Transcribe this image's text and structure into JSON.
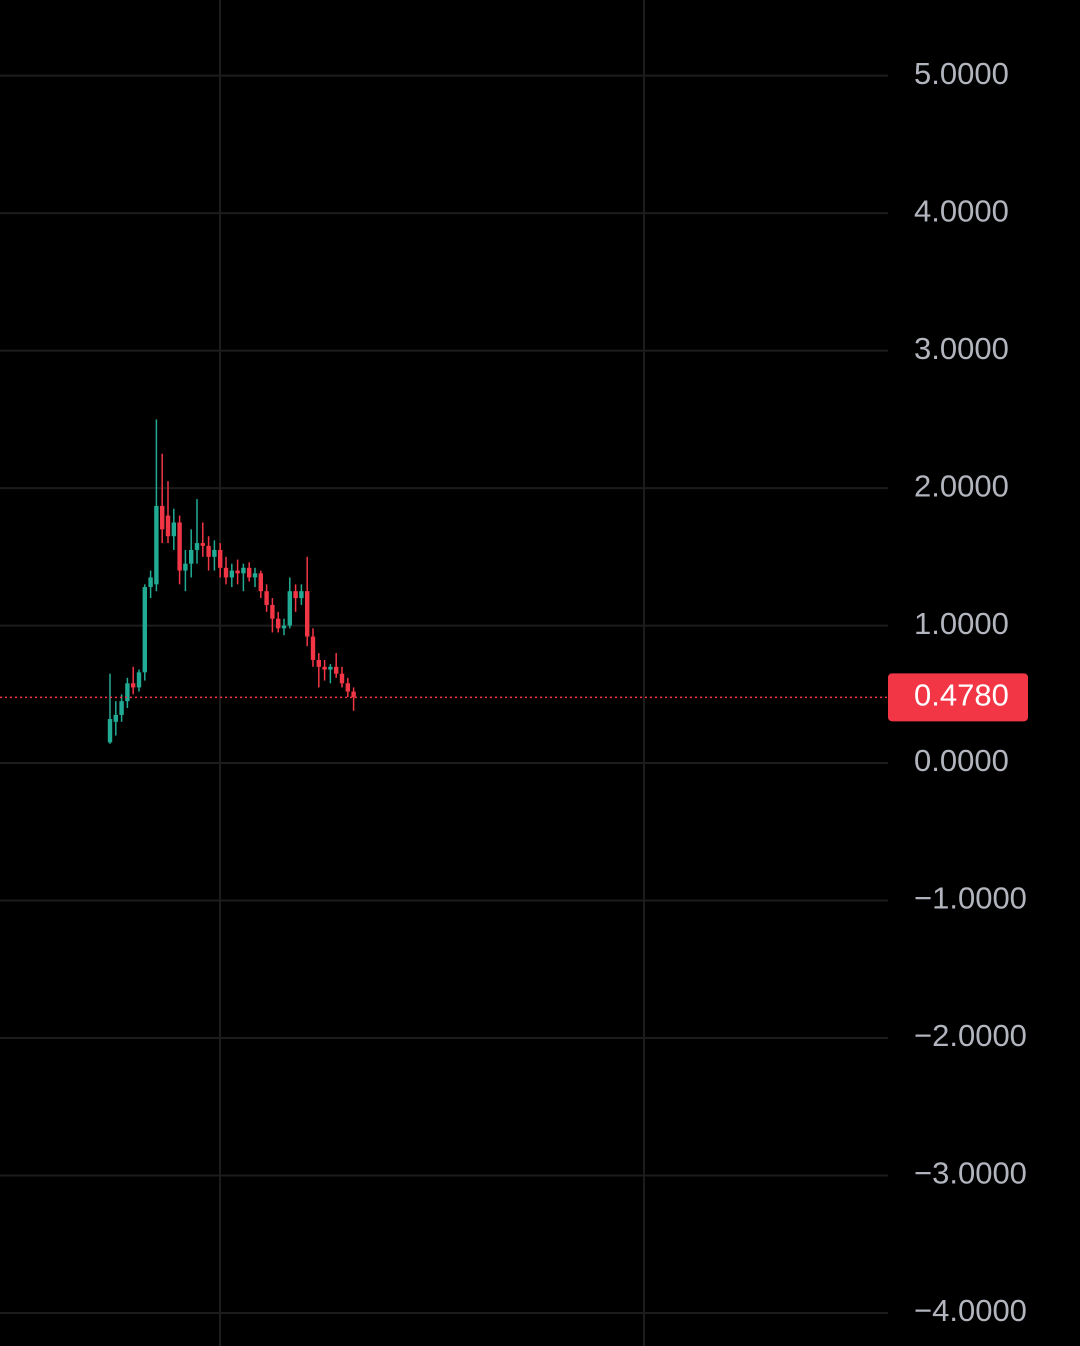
{
  "chart_data": {
    "type": "candlestick",
    "categories": [
      null,
      null,
      null,
      null,
      null,
      null,
      null,
      null,
      null,
      null,
      null,
      null,
      null,
      null,
      null,
      null,
      null,
      null,
      null,
      null,
      null,
      null,
      null,
      null,
      null,
      null,
      null,
      null,
      null,
      null,
      null,
      null,
      null,
      null,
      null,
      null,
      null,
      null,
      null,
      null,
      null,
      null,
      null
    ],
    "open": [
      0.15,
      0.3,
      0.35,
      0.45,
      0.58,
      0.55,
      0.66,
      1.28,
      1.3,
      1.87,
      1.8,
      1.65,
      1.75,
      1.4,
      1.45,
      1.55,
      1.6,
      1.58,
      1.5,
      1.55,
      1.42,
      1.35,
      1.4,
      1.38,
      1.42,
      1.35,
      1.38,
      1.25,
      1.15,
      1.05,
      0.98,
      1.0,
      1.25,
      1.2,
      1.25,
      0.92,
      0.75,
      0.7,
      0.68,
      0.7,
      0.65,
      0.58,
      0.52
    ],
    "high": [
      0.65,
      0.45,
      0.5,
      0.62,
      0.7,
      0.68,
      1.3,
      1.4,
      2.5,
      2.25,
      2.05,
      1.85,
      1.8,
      1.55,
      1.7,
      1.92,
      1.75,
      1.65,
      1.62,
      1.6,
      1.5,
      1.45,
      1.48,
      1.45,
      1.46,
      1.42,
      1.4,
      1.3,
      1.2,
      1.1,
      1.05,
      1.35,
      1.3,
      1.3,
      1.5,
      0.98,
      0.8,
      0.75,
      0.72,
      0.8,
      0.7,
      0.62,
      0.55
    ],
    "low": [
      0.14,
      0.2,
      0.3,
      0.4,
      0.5,
      0.52,
      0.6,
      1.2,
      1.25,
      1.6,
      1.6,
      1.55,
      1.3,
      1.25,
      1.35,
      1.45,
      1.5,
      1.4,
      1.4,
      1.35,
      1.3,
      1.28,
      1.3,
      1.25,
      1.32,
      1.28,
      1.2,
      1.1,
      0.95,
      0.95,
      0.93,
      0.98,
      1.1,
      1.15,
      0.85,
      0.7,
      0.55,
      0.6,
      0.58,
      0.62,
      0.55,
      0.48,
      0.38
    ],
    "close": [
      0.32,
      0.35,
      0.45,
      0.58,
      0.55,
      0.66,
      1.28,
      1.35,
      1.87,
      1.7,
      1.65,
      1.75,
      1.4,
      1.45,
      1.55,
      1.6,
      1.58,
      1.5,
      1.55,
      1.42,
      1.35,
      1.4,
      1.38,
      1.42,
      1.35,
      1.38,
      1.25,
      1.15,
      1.05,
      0.98,
      1.0,
      1.25,
      1.2,
      1.25,
      0.92,
      0.75,
      0.7,
      0.68,
      0.7,
      0.65,
      0.58,
      0.52,
      0.478
    ],
    "up_color": "#22ab94",
    "down_color": "#f23645",
    "ylim": [
      -4.24,
      5.55
    ],
    "yticks": [
      {
        "value": 5,
        "label": "5.0000"
      },
      {
        "value": 4,
        "label": "4.0000"
      },
      {
        "value": 3,
        "label": "3.0000"
      },
      {
        "value": 2,
        "label": "2.0000"
      },
      {
        "value": 1,
        "label": "1.0000"
      },
      {
        "value": 0,
        "label": "0.0000"
      },
      {
        "value": -1,
        "label": "−1.0000"
      },
      {
        "value": -2,
        "label": "−2.0000"
      },
      {
        "value": -3,
        "label": "−3.0000"
      },
      {
        "value": -4,
        "label": "−4.0000"
      }
    ],
    "last_price": {
      "value": 0.478,
      "label": "0.4780"
    },
    "grid": true
  }
}
